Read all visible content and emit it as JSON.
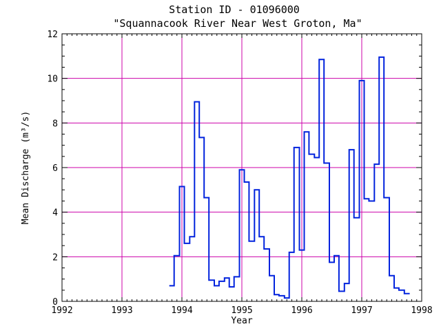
{
  "chart_data": {
    "type": "line",
    "step": true,
    "title": "Station ID - 01096000",
    "subtitle": "\"Squannacook River Near West Groton, Ma\"",
    "xlabel": "Year",
    "ylabel": "Mean Discharge (m³/s)",
    "xlim": [
      1992,
      1998
    ],
    "ylim": [
      0,
      12
    ],
    "xticks": [
      "1992",
      "1993",
      "1994",
      "1995",
      "1996",
      "1997",
      "1998"
    ],
    "yticks": [
      "0",
      "2",
      "4",
      "6",
      "8",
      "10",
      "12"
    ],
    "grid": true,
    "colors": {
      "series": "#0022dd",
      "grid": "#cc00aa",
      "frame": "#000000"
    },
    "series": [
      {
        "x": [
          1993.79,
          1993.87,
          1993.96,
          1994.04,
          1994.13,
          1994.21,
          1994.29,
          1994.37,
          1994.45,
          1994.54,
          1994.62,
          1994.71,
          1994.79,
          1994.87,
          1994.96,
          1995.04,
          1995.12,
          1995.21,
          1995.29,
          1995.37,
          1995.46,
          1995.54,
          1995.62,
          1995.71,
          1995.79,
          1995.87,
          1995.96,
          1996.04,
          1996.12,
          1996.21,
          1996.29,
          1996.37,
          1996.46,
          1996.54,
          1996.62,
          1996.71,
          1996.79,
          1996.87,
          1996.96,
          1997.04,
          1997.12,
          1997.21,
          1997.29,
          1997.37,
          1997.46,
          1997.54,
          1997.62,
          1997.71
        ],
        "y": [
          0.7,
          2.05,
          5.15,
          2.6,
          2.9,
          8.95,
          7.35,
          4.65,
          0.95,
          0.7,
          0.9,
          1.05,
          0.65,
          1.1,
          5.9,
          5.35,
          2.7,
          5.0,
          2.9,
          2.35,
          1.15,
          0.3,
          0.25,
          0.15,
          2.2,
          6.9,
          2.3,
          7.6,
          6.6,
          6.45,
          10.85,
          6.2,
          1.75,
          2.05,
          0.45,
          0.8,
          6.8,
          3.75,
          9.9,
          4.6,
          4.5,
          6.15,
          10.95,
          4.65,
          1.15,
          0.6,
          0.5,
          0.35
        ]
      }
    ]
  }
}
